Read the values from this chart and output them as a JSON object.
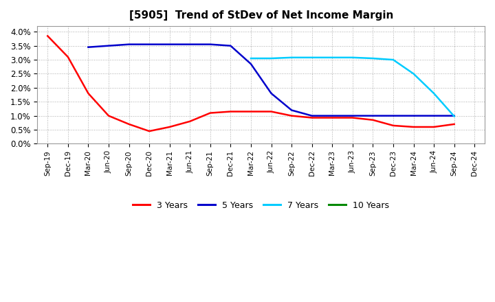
{
  "title": "[5905]  Trend of StDev of Net Income Margin",
  "title_fontsize": 11,
  "background_color": "#ffffff",
  "plot_bg_color": "#ffffff",
  "grid_color": "#aaaaaa",
  "ylim": [
    0.0,
    0.042
  ],
  "yticks": [
    0.0,
    0.005,
    0.01,
    0.015,
    0.02,
    0.025,
    0.03,
    0.035,
    0.04
  ],
  "ytick_labels": [
    "0.0%",
    "0.5%",
    "1.0%",
    "1.5%",
    "2.0%",
    "2.5%",
    "3.0%",
    "3.5%",
    "4.0%"
  ],
  "xtick_labels": [
    "Sep-19",
    "Dec-19",
    "Mar-20",
    "Jun-20",
    "Sep-20",
    "Dec-20",
    "Mar-21",
    "Jun-21",
    "Sep-21",
    "Dec-21",
    "Mar-22",
    "Jun-22",
    "Sep-22",
    "Dec-22",
    "Mar-23",
    "Jun-23",
    "Sep-23",
    "Dec-23",
    "Mar-24",
    "Jun-24",
    "Sep-24",
    "Dec-24"
  ],
  "legend_labels": [
    "3 Years",
    "5 Years",
    "7 Years",
    "10 Years"
  ],
  "legend_colors": [
    "#ff0000",
    "#0000cc",
    "#00ccff",
    "#008800"
  ],
  "series_3yr": [
    0.0385,
    0.031,
    0.018,
    0.01,
    0.007,
    0.0045,
    0.006,
    0.008,
    0.011,
    0.0115,
    0.0115,
    0.0115,
    0.01,
    0.0093,
    0.0093,
    0.0093,
    0.0085,
    0.0065,
    0.006,
    0.006,
    0.007,
    null
  ],
  "series_5yr": [
    null,
    null,
    0.0345,
    0.035,
    0.0355,
    0.0355,
    0.0355,
    0.0355,
    0.0355,
    0.035,
    0.0285,
    0.018,
    0.012,
    0.01,
    0.01,
    0.01,
    0.01,
    0.01,
    0.01,
    0.01,
    0.01,
    null
  ],
  "series_7yr": [
    null,
    null,
    null,
    null,
    null,
    null,
    null,
    null,
    null,
    null,
    0.0305,
    0.0305,
    0.0308,
    0.0308,
    0.0308,
    0.0308,
    0.0305,
    0.03,
    0.025,
    0.018,
    0.0098,
    null
  ],
  "series_10yr": [
    null,
    null,
    null,
    null,
    null,
    null,
    null,
    null,
    null,
    null,
    null,
    null,
    null,
    null,
    null,
    null,
    null,
    null,
    null,
    null,
    null,
    null
  ]
}
